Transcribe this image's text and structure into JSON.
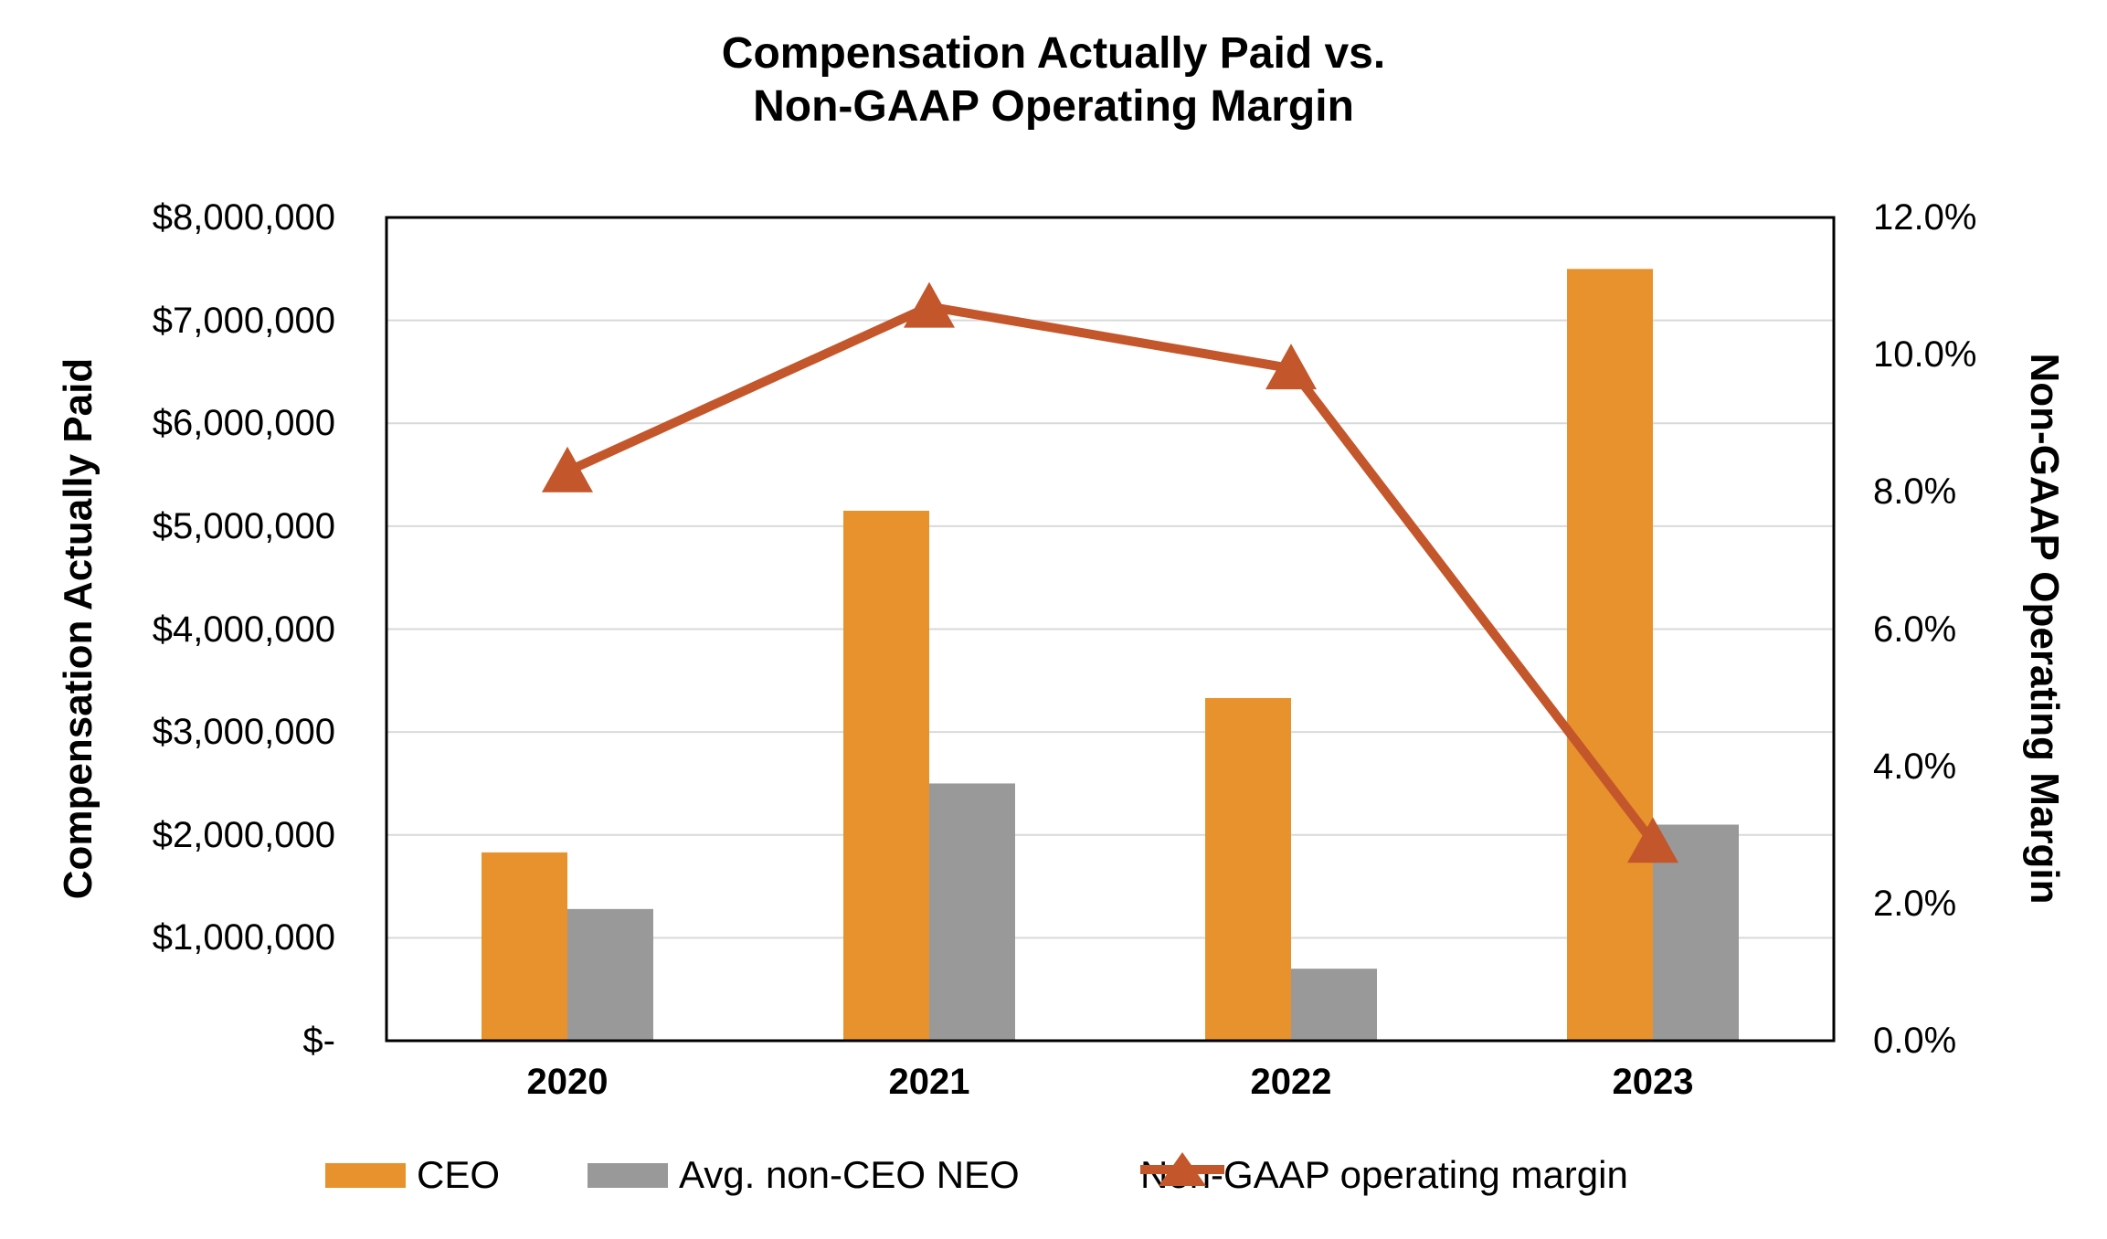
{
  "title": {
    "line1": "Compensation Actually Paid vs.",
    "line2": "Non-GAAP Operating Margin"
  },
  "axes": {
    "left": {
      "title": "Compensation Actually Paid",
      "tick_labels": [
        "$8,000,000",
        "$7,000,000",
        "$6,000,000",
        "$5,000,000",
        "$4,000,000",
        "$3,000,000",
        "$2,000,000",
        "$1,000,000",
        "$-"
      ]
    },
    "right": {
      "title": "Non-GAAP Operating Margin",
      "tick_labels": [
        "12.0%",
        "10.0%",
        "8.0%",
        "6.0%",
        "4.0%",
        "2.0%",
        "0.0%"
      ]
    },
    "x": {
      "tick_labels": [
        "2020",
        "2021",
        "2022",
        "2023"
      ]
    }
  },
  "legend": {
    "items": [
      {
        "label": "CEO",
        "marker": "bar-swatch",
        "color": "#E8922D"
      },
      {
        "label": "Avg. non-CEO NEO",
        "marker": "bar-swatch",
        "color": "#999999"
      },
      {
        "label": "Non-GAAP operating margin",
        "marker": "line-triangle",
        "color": "#C4562B"
      }
    ]
  },
  "colors": {
    "ceo_bar": "#E8922D",
    "neo_bar": "#999999",
    "margin_line": "#C4562B",
    "gridline": "#D9D9D9",
    "axis_border": "#000000",
    "text": "#000000"
  },
  "chart_data": {
    "type": "bar",
    "subtype": "grouped-bars-with-line-overlay",
    "title": "Compensation Actually Paid vs. Non-GAAP Operating Margin",
    "categories": [
      "2020",
      "2021",
      "2022",
      "2023"
    ],
    "series": [
      {
        "name": "CEO",
        "type": "bar",
        "axis": "left",
        "color": "#E8922D",
        "values": [
          1830000,
          5150000,
          3330000,
          7500000
        ]
      },
      {
        "name": "Avg. non-CEO NEO",
        "type": "bar",
        "axis": "left",
        "color": "#999999",
        "values": [
          1280000,
          2500000,
          700000,
          2100000
        ]
      },
      {
        "name": "Non-GAAP operating margin",
        "type": "line",
        "axis": "right",
        "color": "#C4562B",
        "marker": "triangle",
        "values_percent": [
          8.3,
          10.7,
          9.8,
          2.9
        ]
      }
    ],
    "left_axis": {
      "label": "Compensation Actually Paid",
      "range": [
        0,
        8000000
      ],
      "tick_step": 1000000,
      "tick_format": "$#,##0"
    },
    "right_axis": {
      "label": "Non-GAAP Operating Margin",
      "range_percent": [
        0,
        12
      ],
      "tick_step_percent": 2,
      "tick_format": "0.0%"
    },
    "grid": true,
    "legend_position": "bottom"
  }
}
